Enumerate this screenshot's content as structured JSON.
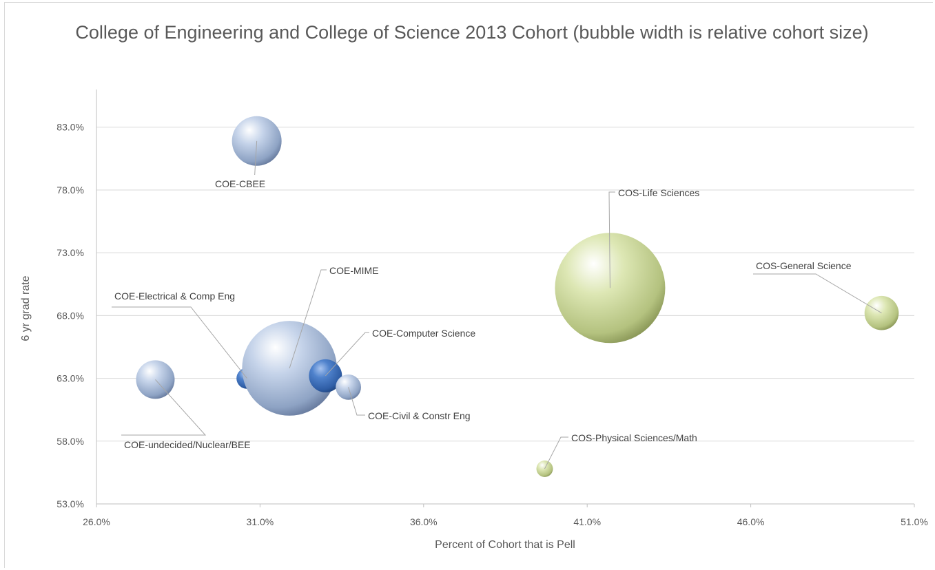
{
  "chart_data": {
    "type": "bubble",
    "title": "College of Engineering and College of Science 2013 Cohort (bubble width is relative cohort size)",
    "xlabel": "Percent of Cohort that is Pell",
    "ylabel": "6 yr grad rate",
    "xlim": [
      26.0,
      51.0
    ],
    "ylim": [
      53.0,
      86.0
    ],
    "x_ticks": [
      26.0,
      31.0,
      36.0,
      41.0,
      46.0,
      51.0
    ],
    "y_ticks": [
      53.0,
      58.0,
      63.0,
      68.0,
      73.0,
      78.0,
      83.0
    ],
    "x_tick_labels": [
      "26.0%",
      "31.0%",
      "36.0%",
      "41.0%",
      "46.0%",
      "51.0%"
    ],
    "y_tick_labels": [
      "53.0%",
      "58.0%",
      "63.0%",
      "68.0%",
      "73.0%",
      "78.0%",
      "83.0%"
    ],
    "grid": "horizontal",
    "colors": {
      "coe": "#a9bcd8",
      "coe_dark": "#3f74bd",
      "cos": "#c7d49c",
      "grid": "#d9d9d9",
      "text": "#595959"
    },
    "points": [
      {
        "label": "COE-CBEE",
        "x": 30.9,
        "y": 81.9,
        "size": 0.45,
        "color": "coe"
      },
      {
        "label": "COE-undecided/Nuclear/BEE",
        "x": 27.8,
        "y": 62.9,
        "size": 0.35,
        "color": "coe"
      },
      {
        "label": "COE-Electrical & Comp Eng",
        "x": 30.6,
        "y": 63.0,
        "size": 0.19,
        "color": "coe_dark"
      },
      {
        "label": "COE-MIME",
        "x": 31.9,
        "y": 63.8,
        "size": 0.86,
        "color": "coe"
      },
      {
        "label": "COE-Computer Science",
        "x": 33.0,
        "y": 63.2,
        "size": 0.3,
        "color": "coe_dark"
      },
      {
        "label": "COE-Civil & Constr Eng",
        "x": 33.7,
        "y": 62.3,
        "size": 0.23,
        "color": "coe"
      },
      {
        "label": "COS-Life Sciences",
        "x": 41.7,
        "y": 70.2,
        "size": 1.0,
        "color": "cos"
      },
      {
        "label": "COS-General Science",
        "x": 50.0,
        "y": 68.2,
        "size": 0.31,
        "color": "cos"
      },
      {
        "label": "COS-Physical Sciences/Math",
        "x": 39.7,
        "y": 55.8,
        "size": 0.15,
        "color": "cos"
      }
    ]
  }
}
